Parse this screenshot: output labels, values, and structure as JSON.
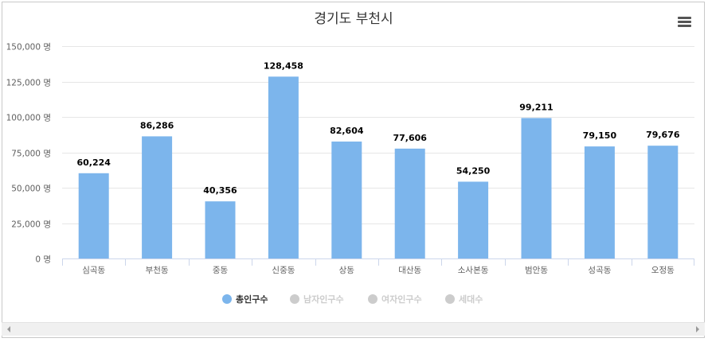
{
  "chart_data": {
    "type": "bar",
    "title": "경기도 부천시",
    "categories": [
      "심곡동",
      "부천동",
      "중동",
      "신중동",
      "상동",
      "대산동",
      "소사본동",
      "범안동",
      "성곡동",
      "오정동"
    ],
    "series": [
      {
        "name": "총인구수",
        "values": [
          60224,
          86286,
          40356,
          128458,
          82604,
          77606,
          54250,
          99211,
          79150,
          79676
        ]
      }
    ],
    "data_labels": [
      "60,224",
      "86,286",
      "40,356",
      "128,458",
      "82,604",
      "77,606",
      "54,250",
      "99,211",
      "79,150",
      "79,676"
    ],
    "ylim": [
      0,
      150000
    ],
    "yticks": [
      0,
      25000,
      50000,
      75000,
      100000,
      125000,
      150000
    ],
    "ytick_labels": [
      "0 명",
      "25,000 명",
      "50,000 명",
      "75,000 명",
      "100,000 명",
      "125,000 명",
      "150,000 명"
    ],
    "grid": true,
    "bar_color": "#7cb5ec",
    "legend": {
      "placement": "bottom",
      "items": [
        {
          "name": "총인구수",
          "active": true,
          "color": "#7cb5ec"
        },
        {
          "name": "남자인구수",
          "active": false,
          "color": "#cccccc"
        },
        {
          "name": "여자인구수",
          "active": false,
          "color": "#cccccc"
        },
        {
          "name": "세대수",
          "active": false,
          "color": "#cccccc"
        }
      ]
    }
  },
  "icons": {
    "menu": "hamburger-menu-icon",
    "scroll_left": "arrow-left-icon",
    "scroll_right": "arrow-right-icon"
  }
}
